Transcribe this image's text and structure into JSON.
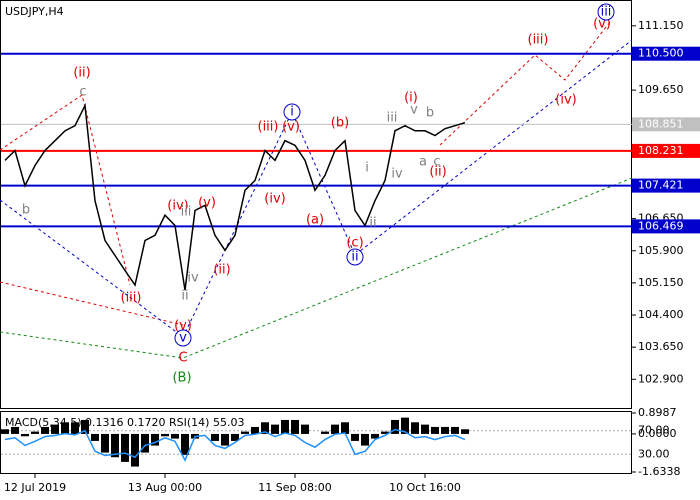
{
  "chart_data": {
    "type": "line",
    "title": "USDJPY,H4",
    "color": "#000000",
    "categories": [
      null,
      null,
      null,
      "12 Jul 2019",
      null,
      null,
      null,
      null,
      null,
      null,
      null,
      null,
      null,
      null,
      null,
      null,
      "13 Aug 00:00",
      null,
      null,
      null,
      null,
      null,
      null,
      null,
      null,
      null,
      null,
      null,
      null,
      "11 Sep 08:00",
      null,
      null,
      null,
      null,
      null,
      null,
      null,
      null,
      null,
      null,
      null,
      null,
      "10 Oct 16:00",
      null,
      null,
      null,
      null
    ],
    "values": [
      108.01,
      108.24,
      107.42,
      107.89,
      108.24,
      108.47,
      108.7,
      108.82,
      109.29,
      107.07,
      106.14,
      105.79,
      105.44,
      105.1,
      106.14,
      106.26,
      106.73,
      106.49,
      104.98,
      106.84,
      106.96,
      106.26,
      105.91,
      106.26,
      107.31,
      107.54,
      108.24,
      108.01,
      108.47,
      108.36,
      108.01,
      107.31,
      107.66,
      108.24,
      108.47,
      106.84,
      106.49,
      107.07,
      107.54,
      108.7,
      108.82,
      108.7,
      108.7,
      108.59,
      108.75,
      108.82,
      108.89
    ],
    "ylim": [
      102.23,
      111.73
    ],
    "yticks": [
      {
        "value": 111.15,
        "label": "111.150"
      },
      {
        "value": 109.65,
        "label": "109.650"
      },
      {
        "value": 106.65,
        "label": "106.650"
      },
      {
        "value": 105.9,
        "label": "105.900"
      },
      {
        "value": 105.15,
        "label": "105.150"
      },
      {
        "value": 104.4,
        "label": "104.400"
      },
      {
        "value": 103.65,
        "label": "103.650"
      },
      {
        "value": 102.9,
        "label": "102.900"
      }
    ],
    "levels": [
      {
        "value": 110.5,
        "label": "110.500",
        "color": "#0000cc"
      },
      {
        "value": 108.851,
        "label": "108.851",
        "color": "#c0c0c0"
      },
      {
        "value": 108.231,
        "label": "108.231",
        "color": "#ff0000"
      },
      {
        "value": 107.421,
        "label": "107.421",
        "color": "#0000cc"
      },
      {
        "value": 106.469,
        "label": "106.469",
        "color": "#0000cc"
      }
    ],
    "annotations": [
      {
        "text": "(ii)",
        "color": "#dd0000"
      },
      {
        "text": "(iii)",
        "color": "#dd0000"
      },
      {
        "text": "(iv)",
        "color": "#dd0000"
      },
      {
        "text": "(v)",
        "color": "#dd0000"
      },
      {
        "text": "(ii)",
        "color": "#dd0000"
      },
      {
        "text": "(iii)",
        "color": "#dd0000"
      },
      {
        "text": "(iv)",
        "color": "#dd0000"
      },
      {
        "text": "(v)",
        "color": "#dd0000"
      },
      {
        "text": "(a)",
        "color": "#dd0000"
      },
      {
        "text": "(b)",
        "color": "#dd0000"
      },
      {
        "text": "(c)",
        "color": "#dd0000"
      },
      {
        "text": "(i)",
        "color": "#dd0000"
      },
      {
        "text": "(ii)",
        "color": "#dd0000"
      },
      {
        "text": "(iii)",
        "color": "#dd0000"
      },
      {
        "text": "(iv)",
        "color": "#dd0000"
      },
      {
        "text": "(v)",
        "color": "#dd0000"
      },
      {
        "text": "(v)",
        "color": "#dd0000"
      },
      {
        "text": "C",
        "color": "#dd0000"
      },
      {
        "text": "(B)",
        "color": "#118811"
      },
      {
        "text": "i",
        "color": "#0000cc"
      },
      {
        "text": "ii",
        "color": "#0000cc"
      },
      {
        "text": "iii",
        "color": "#0000cc"
      },
      {
        "text": "v",
        "color": "#0000cc"
      },
      {
        "text": "b",
        "color": "#808080"
      },
      {
        "text": "c",
        "color": "#808080"
      },
      {
        "text": "iii",
        "color": "#808080"
      },
      {
        "text": "iv",
        "color": "#808080"
      },
      {
        "text": "ii",
        "color": "#808080"
      },
      {
        "text": "i",
        "color": "#808080"
      },
      {
        "text": "ii",
        "color": "#808080"
      },
      {
        "text": "iii",
        "color": "#808080"
      },
      {
        "text": "iv",
        "color": "#808080"
      },
      {
        "text": "v",
        "color": "#808080"
      },
      {
        "text": "b",
        "color": "#808080"
      },
      {
        "text": "a",
        "color": "#808080"
      },
      {
        "text": "c",
        "color": "#808080"
      }
    ],
    "indicator": {
      "title": "MACD(5,34,5) 0.1316 0.1720 RSI(14) 55.03",
      "macd": {
        "color": "#000000",
        "ylim": [
          -1.6338,
          0.8987
        ],
        "yticks": [
          0.8987,
          {
            "value": 0,
            "label": "0.0000"
          },
          -1.6338
        ],
        "values": [
          0.2,
          0.3,
          -0.1,
          0.1,
          0.3,
          0.4,
          0.5,
          0.5,
          0.6,
          -0.3,
          -0.8,
          -1.0,
          -1.2,
          -1.4,
          -0.8,
          -0.5,
          -0.1,
          -0.2,
          -0.9,
          -0.2,
          0.0,
          -0.3,
          -0.5,
          -0.3,
          0.1,
          0.3,
          0.5,
          0.4,
          0.6,
          0.6,
          0.4,
          0.0,
          0.1,
          0.4,
          0.5,
          -0.3,
          -0.5,
          -0.2,
          0.1,
          0.6,
          0.7,
          0.5,
          0.4,
          0.3,
          0.3,
          0.3,
          0.2
        ]
      },
      "rsi": {
        "color": "#1e90ff",
        "ylim": [
          0,
          100
        ],
        "yticks": [
          {
            "value": 70,
            "label": "70.00"
          },
          {
            "value": 30,
            "label": "30.00"
          }
        ],
        "values": [
          55,
          58,
          45,
          52,
          60,
          62,
          65,
          63,
          70,
          35,
          28,
          30,
          32,
          25,
          45,
          50,
          58,
          52,
          20,
          60,
          62,
          45,
          40,
          50,
          62,
          64,
          68,
          60,
          66,
          62,
          50,
          42,
          55,
          64,
          66,
          30,
          35,
          55,
          62,
          72,
          68,
          58,
          60,
          55,
          60,
          62,
          55
        ]
      }
    }
  }
}
